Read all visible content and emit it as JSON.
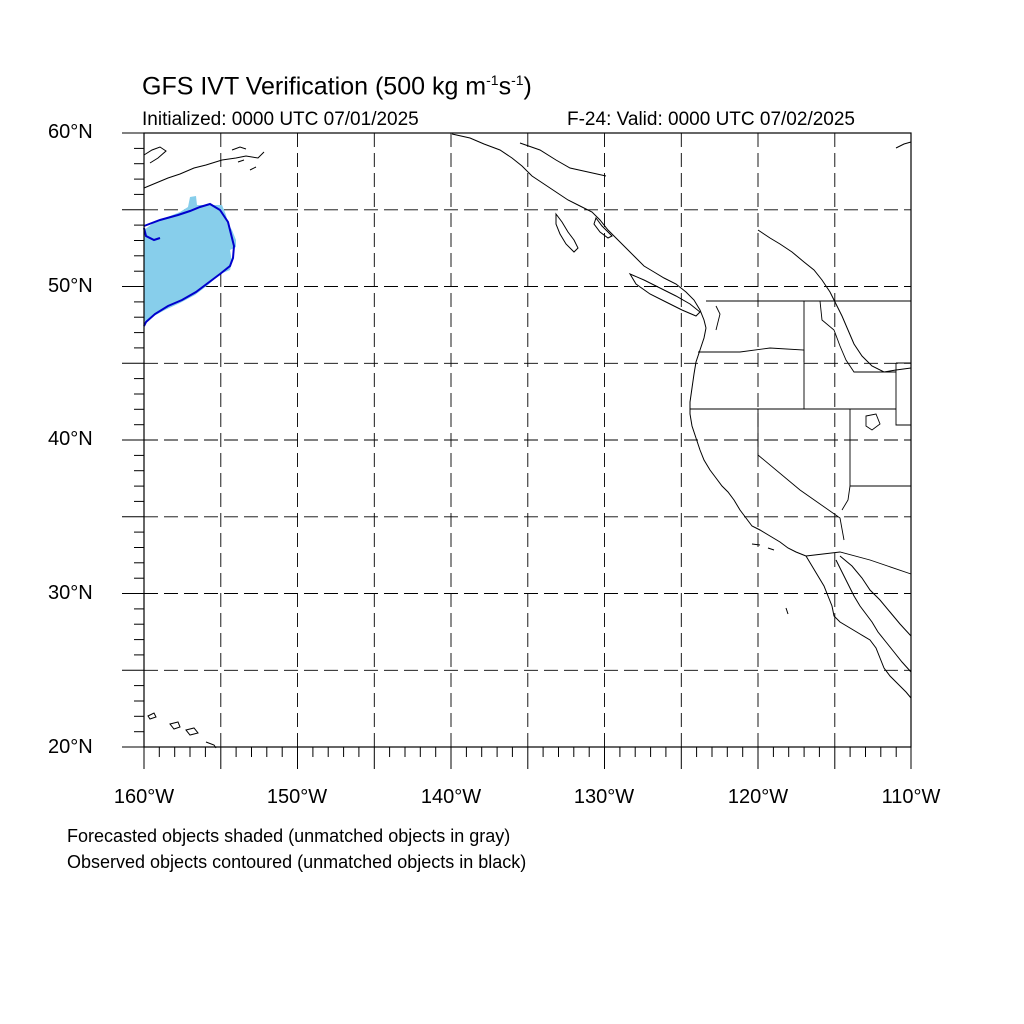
{
  "title": {
    "prefix": "GFS IVT Verification (500 kg m",
    "sup1": "-1",
    "mid": "s",
    "sup2": "-1",
    "suffix": ")"
  },
  "subtitle_left": "Initialized: 0000 UTC 07/01/2025",
  "subtitle_right": "F-24: Valid: 0000 UTC 07/02/2025",
  "lat_labels": [
    "60°N",
    "50°N",
    "40°N",
    "30°N",
    "20°N"
  ],
  "lon_labels": [
    "160°W",
    "150°W",
    "140°W",
    "130°W",
    "120°W",
    "110°W"
  ],
  "legend_notes": [
    "Forecasted objects shaded (unmatched objects in gray)",
    "Observed objects contoured (unmatched objects in black)"
  ],
  "colors": {
    "forecast_fill": "#87ceeb",
    "observed_contour": "#0000cd",
    "coastline": "#000000",
    "grid": "#000000"
  }
}
